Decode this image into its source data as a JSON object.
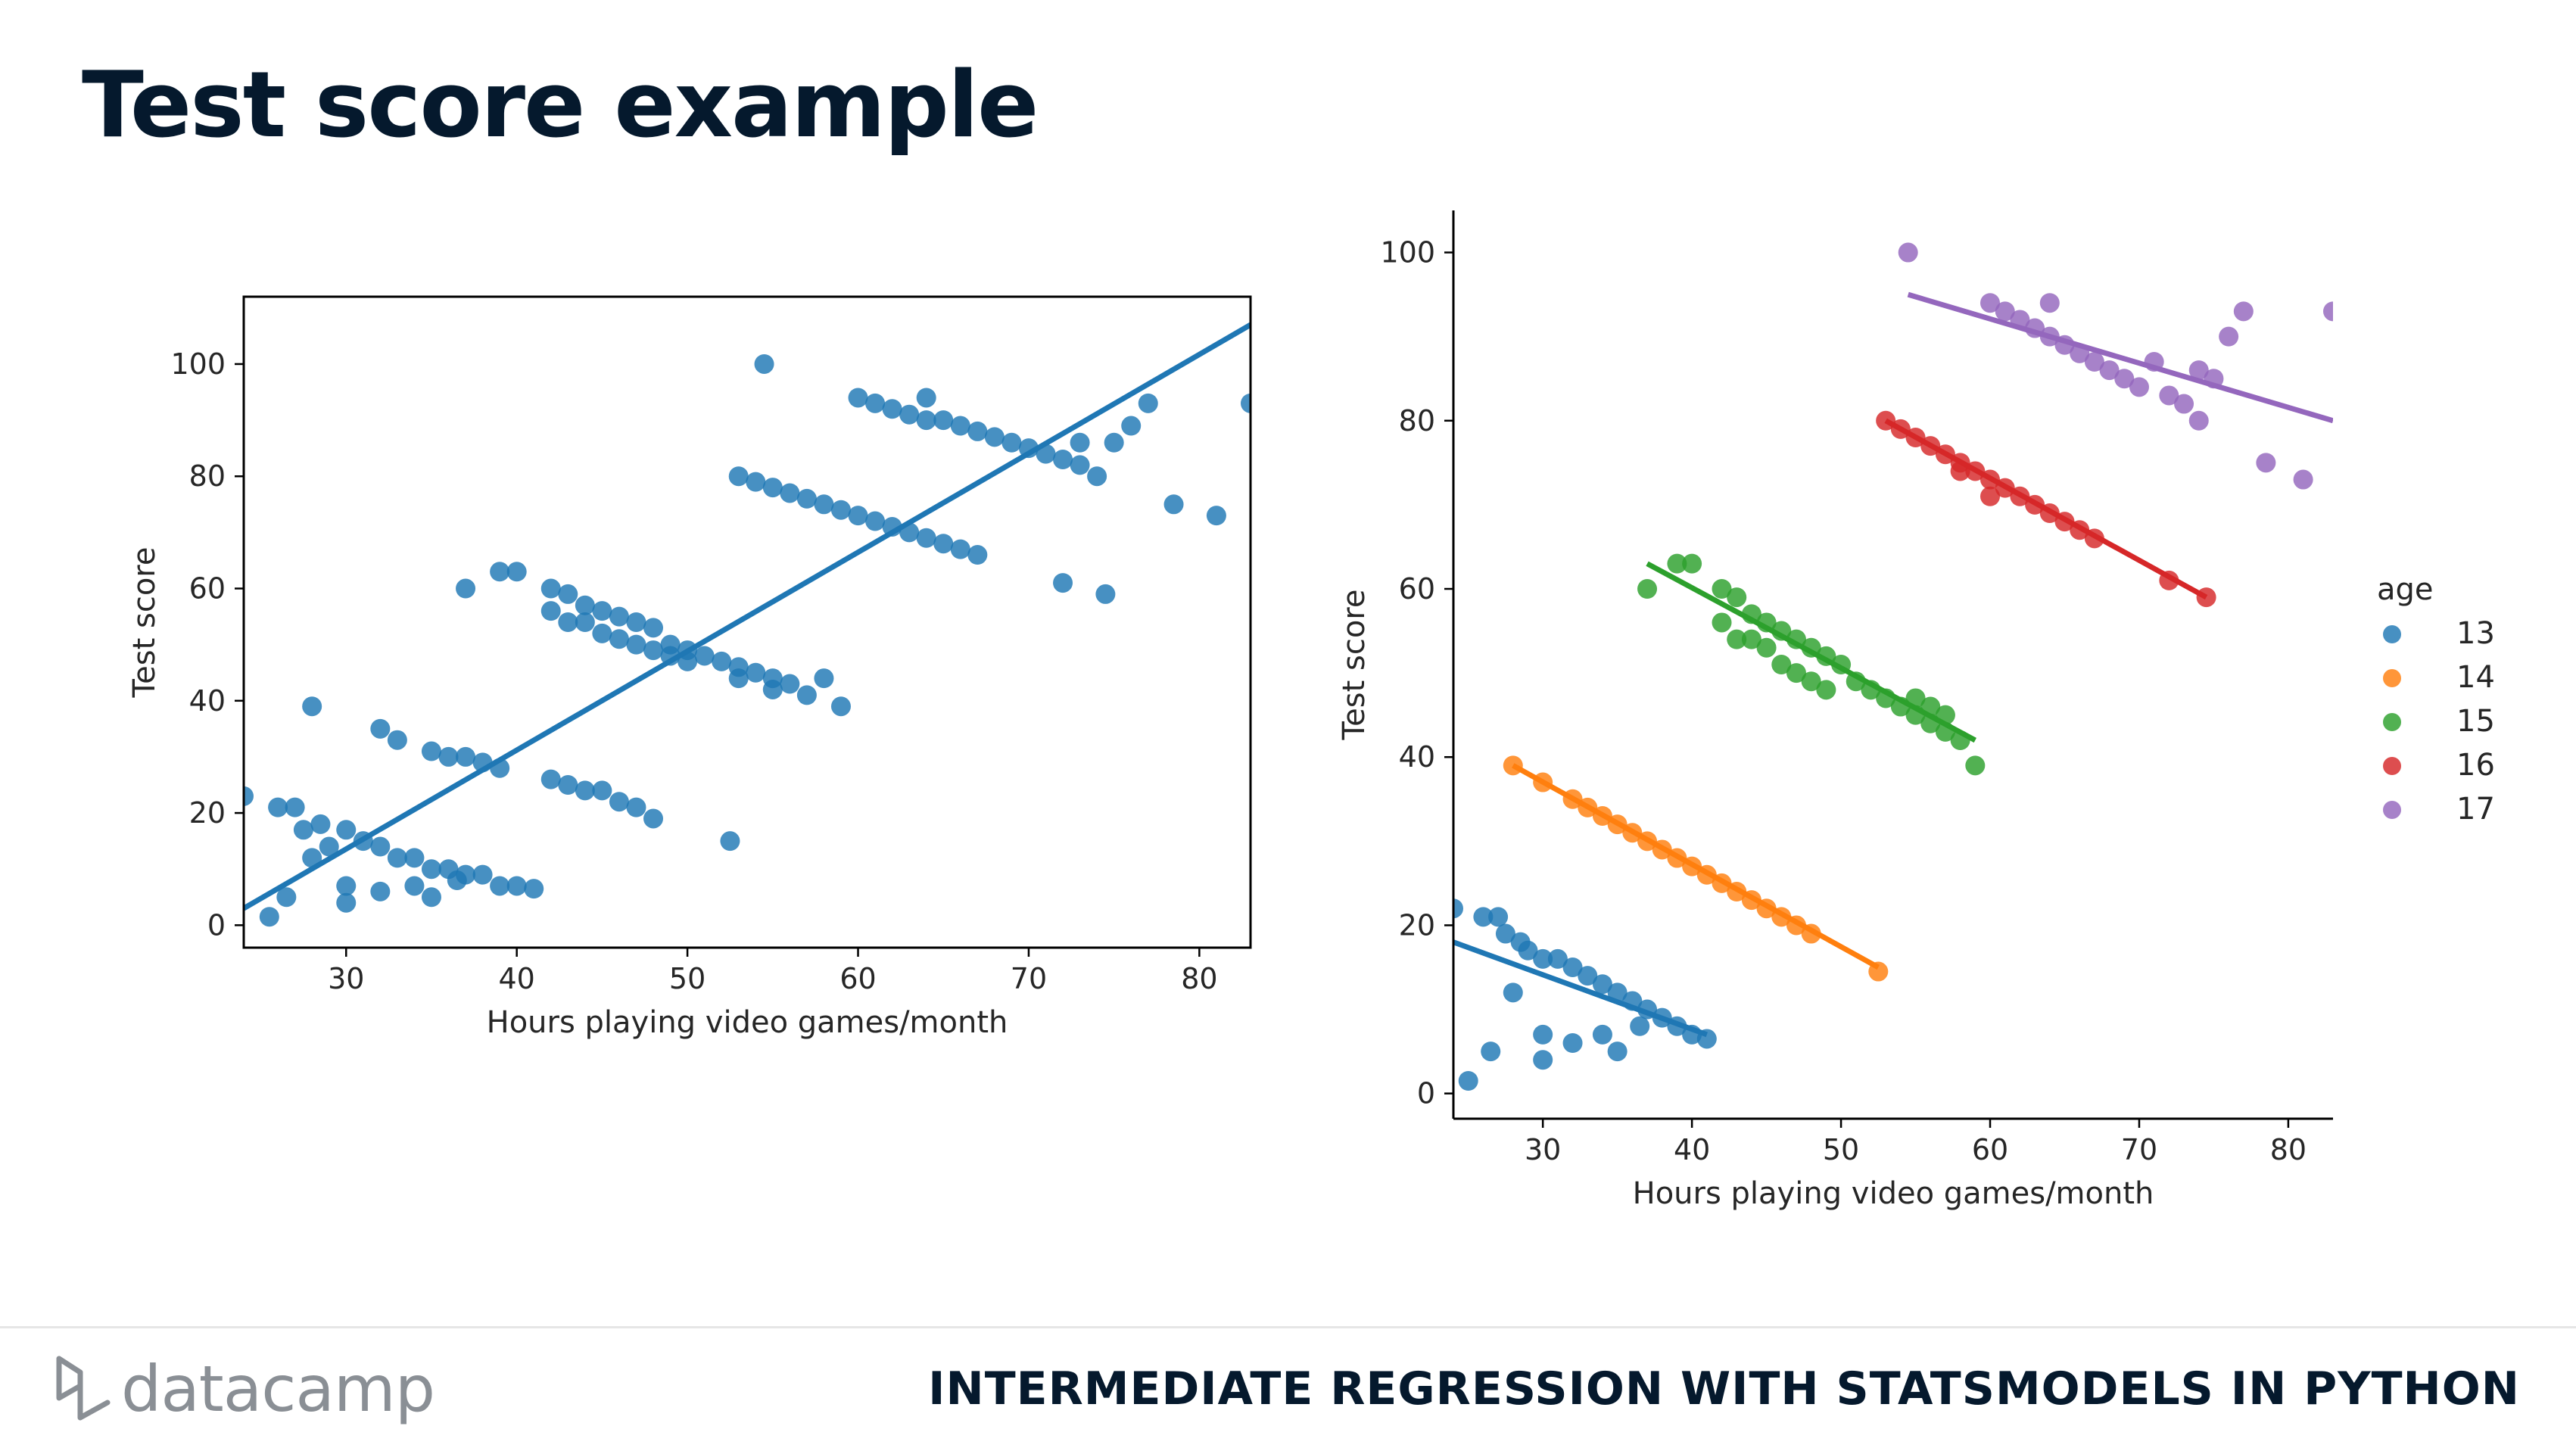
{
  "slide": {
    "title": "Test score example",
    "brand": "datacamp",
    "course": "INTERMEDIATE REGRESSION WITH STATSMODELS IN PYTHON"
  },
  "chart_data": [
    {
      "type": "scatter",
      "title": "",
      "xlabel": "Hours playing video games/month",
      "ylabel": "Test score",
      "xlim": [
        24,
        83
      ],
      "ylim": [
        -4,
        112
      ],
      "xticks": [
        30,
        40,
        50,
        60,
        70,
        80
      ],
      "yticks": [
        0,
        20,
        40,
        60,
        80,
        100
      ],
      "frame": "box",
      "grid": false,
      "series": [
        {
          "color": "#1f77b4",
          "points": [
            [
              24,
              23
            ],
            [
              25.5,
              1.5
            ],
            [
              26,
              21
            ],
            [
              27,
              21
            ],
            [
              27.5,
              17
            ],
            [
              28.5,
              18
            ],
            [
              29,
              14
            ],
            [
              30,
              17
            ],
            [
              31,
              15
            ],
            [
              32,
              14
            ],
            [
              33,
              12
            ],
            [
              34,
              12
            ],
            [
              35,
              10
            ],
            [
              36,
              10
            ],
            [
              37,
              9
            ],
            [
              38,
              9
            ],
            [
              39,
              7
            ],
            [
              40,
              7
            ],
            [
              41,
              6.5
            ],
            [
              26.5,
              5
            ],
            [
              28,
              12
            ],
            [
              30,
              7
            ],
            [
              30,
              4
            ],
            [
              32,
              6
            ],
            [
              34,
              7
            ],
            [
              35,
              5
            ],
            [
              36.5,
              8
            ],
            [
              28,
              39
            ],
            [
              32,
              35
            ],
            [
              33,
              33
            ],
            [
              35,
              31
            ],
            [
              36,
              30
            ],
            [
              37,
              30
            ],
            [
              38,
              29
            ],
            [
              39,
              28
            ],
            [
              42,
              26
            ],
            [
              43,
              25
            ],
            [
              44,
              24
            ],
            [
              45,
              24
            ],
            [
              46,
              22
            ],
            [
              47,
              21
            ],
            [
              48,
              19
            ],
            [
              52.5,
              15
            ],
            [
              37,
              60
            ],
            [
              39,
              63
            ],
            [
              40,
              63
            ],
            [
              42,
              60
            ],
            [
              43,
              59
            ],
            [
              44,
              57
            ],
            [
              45,
              56
            ],
            [
              46,
              55
            ],
            [
              47,
              54
            ],
            [
              48,
              53
            ],
            [
              49,
              50
            ],
            [
              50,
              49
            ],
            [
              51,
              48
            ],
            [
              52,
              47
            ],
            [
              53,
              46
            ],
            [
              54,
              45
            ],
            [
              55,
              44
            ],
            [
              56,
              43
            ],
            [
              57,
              41
            ],
            [
              58,
              44
            ],
            [
              59,
              39
            ],
            [
              42,
              56
            ],
            [
              43,
              54
            ],
            [
              44,
              54
            ],
            [
              45,
              52
            ],
            [
              46,
              51
            ],
            [
              47,
              50
            ],
            [
              48,
              49
            ],
            [
              49,
              48
            ],
            [
              50,
              47
            ],
            [
              53,
              44
            ],
            [
              55,
              42
            ],
            [
              53,
              80
            ],
            [
              54,
              79
            ],
            [
              55,
              78
            ],
            [
              56,
              77
            ],
            [
              57,
              76
            ],
            [
              58,
              75
            ],
            [
              59,
              74
            ],
            [
              60,
              73
            ],
            [
              61,
              72
            ],
            [
              62,
              71
            ],
            [
              63,
              70
            ],
            [
              64,
              69
            ],
            [
              65,
              68
            ],
            [
              66,
              67
            ],
            [
              67,
              66
            ],
            [
              54.5,
              100
            ],
            [
              72,
              61
            ],
            [
              74.5,
              59
            ],
            [
              60,
              94
            ],
            [
              61,
              93
            ],
            [
              62,
              92
            ],
            [
              63,
              91
            ],
            [
              64,
              90
            ],
            [
              65,
              90
            ],
            [
              66,
              89
            ],
            [
              67,
              88
            ],
            [
              68,
              87
            ],
            [
              69,
              86
            ],
            [
              70,
              85
            ],
            [
              71,
              84
            ],
            [
              72,
              83
            ],
            [
              73,
              82
            ],
            [
              74,
              80
            ],
            [
              73,
              86
            ],
            [
              75,
              86
            ],
            [
              76,
              89
            ],
            [
              77,
              93
            ],
            [
              78.5,
              75
            ],
            [
              81,
              73
            ],
            [
              83,
              93
            ],
            [
              64,
              94
            ]
          ]
        }
      ],
      "fit_lines": [
        {
          "color": "#1f77b4",
          "x": [
            24,
            83
          ],
          "y": [
            3,
            107
          ]
        }
      ]
    },
    {
      "type": "scatter",
      "title": "",
      "xlabel": "Hours playing video games/month",
      "ylabel": "Test score",
      "xlim": [
        24,
        83
      ],
      "ylim": [
        -3,
        105
      ],
      "xticks": [
        30,
        40,
        50,
        60,
        70,
        80
      ],
      "yticks": [
        0,
        20,
        40,
        60,
        80,
        100
      ],
      "frame": "left-bottom",
      "grid": false,
      "legend": {
        "title": "age",
        "position": "right"
      },
      "series": [
        {
          "name": "13",
          "color": "#1f77b4",
          "points": [
            [
              24,
              22
            ],
            [
              25,
              1.5
            ],
            [
              26,
              21
            ],
            [
              27,
              21
            ],
            [
              27.5,
              19
            ],
            [
              28.5,
              18
            ],
            [
              29,
              17
            ],
            [
              30,
              16
            ],
            [
              31,
              16
            ],
            [
              32,
              15
            ],
            [
              33,
              14
            ],
            [
              34,
              13
            ],
            [
              35,
              12
            ],
            [
              36,
              11
            ],
            [
              37,
              10
            ],
            [
              38,
              9
            ],
            [
              39,
              8
            ],
            [
              40,
              7
            ],
            [
              41,
              6.5
            ],
            [
              26.5,
              5
            ],
            [
              28,
              12
            ],
            [
              30,
              7
            ],
            [
              30,
              4
            ],
            [
              32,
              6
            ],
            [
              34,
              7
            ],
            [
              35,
              5
            ],
            [
              36.5,
              8
            ]
          ]
        },
        {
          "name": "14",
          "color": "#ff7f0e",
          "points": [
            [
              28,
              39
            ],
            [
              30,
              37
            ],
            [
              32,
              35
            ],
            [
              33,
              34
            ],
            [
              34,
              33
            ],
            [
              35,
              32
            ],
            [
              36,
              31
            ],
            [
              37,
              30
            ],
            [
              38,
              29
            ],
            [
              39,
              28
            ],
            [
              40,
              27
            ],
            [
              41,
              26
            ],
            [
              42,
              25
            ],
            [
              43,
              24
            ],
            [
              44,
              23
            ],
            [
              45,
              22
            ],
            [
              46,
              21
            ],
            [
              47,
              20
            ],
            [
              48,
              19
            ],
            [
              52.5,
              14.5
            ]
          ]
        },
        {
          "name": "15",
          "color": "#2ca02c",
          "points": [
            [
              37,
              60
            ],
            [
              39,
              63
            ],
            [
              40,
              63
            ],
            [
              42,
              60
            ],
            [
              43,
              59
            ],
            [
              44,
              57
            ],
            [
              45,
              56
            ],
            [
              46,
              55
            ],
            [
              47,
              54
            ],
            [
              48,
              53
            ],
            [
              49,
              52
            ],
            [
              50,
              51
            ],
            [
              51,
              49
            ],
            [
              52,
              48
            ],
            [
              53,
              47
            ],
            [
              54,
              46
            ],
            [
              55,
              45
            ],
            [
              56,
              44
            ],
            [
              57,
              43
            ],
            [
              58,
              42
            ],
            [
              59,
              39
            ],
            [
              42,
              56
            ],
            [
              43,
              54
            ],
            [
              44,
              54
            ],
            [
              45,
              53
            ],
            [
              46,
              51
            ],
            [
              47,
              50
            ],
            [
              48,
              49
            ],
            [
              49,
              48
            ],
            [
              55,
              47
            ],
            [
              56,
              46
            ],
            [
              57,
              45
            ]
          ]
        },
        {
          "name": "16",
          "color": "#d62728",
          "points": [
            [
              53,
              80
            ],
            [
              54,
              79
            ],
            [
              55,
              78
            ],
            [
              56,
              77
            ],
            [
              57,
              76
            ],
            [
              58,
              75
            ],
            [
              59,
              74
            ],
            [
              60,
              73
            ],
            [
              61,
              72
            ],
            [
              62,
              71
            ],
            [
              63,
              70
            ],
            [
              64,
              69
            ],
            [
              65,
              68
            ],
            [
              66,
              67
            ],
            [
              67,
              66
            ],
            [
              72,
              61
            ],
            [
              74.5,
              59
            ],
            [
              60,
              71
            ],
            [
              58,
              74
            ]
          ]
        },
        {
          "name": "17",
          "color": "#9467bd",
          "points": [
            [
              54.5,
              100
            ],
            [
              60,
              94
            ],
            [
              61,
              93
            ],
            [
              62,
              92
            ],
            [
              63,
              91
            ],
            [
              64,
              90
            ],
            [
              65,
              89
            ],
            [
              66,
              88
            ],
            [
              67,
              87
            ],
            [
              68,
              86
            ],
            [
              69,
              85
            ],
            [
              70,
              84
            ],
            [
              71,
              87
            ],
            [
              72,
              83
            ],
            [
              73,
              82
            ],
            [
              74,
              80
            ],
            [
              74,
              86
            ],
            [
              75,
              85
            ],
            [
              76,
              90
            ],
            [
              77,
              93
            ],
            [
              78.5,
              75
            ],
            [
              81,
              73
            ],
            [
              83,
              93
            ],
            [
              64,
              94
            ]
          ]
        }
      ],
      "fit_lines": [
        {
          "color": "#1f77b4",
          "x": [
            24,
            41
          ],
          "y": [
            18,
            7
          ]
        },
        {
          "color": "#ff7f0e",
          "x": [
            28,
            52.5
          ],
          "y": [
            39,
            15
          ]
        },
        {
          "color": "#2ca02c",
          "x": [
            37,
            59
          ],
          "y": [
            63,
            42
          ]
        },
        {
          "color": "#d62728",
          "x": [
            53,
            74.5
          ],
          "y": [
            80,
            59
          ]
        },
        {
          "color": "#9467bd",
          "x": [
            54.5,
            83
          ],
          "y": [
            95,
            80
          ]
        }
      ]
    }
  ]
}
